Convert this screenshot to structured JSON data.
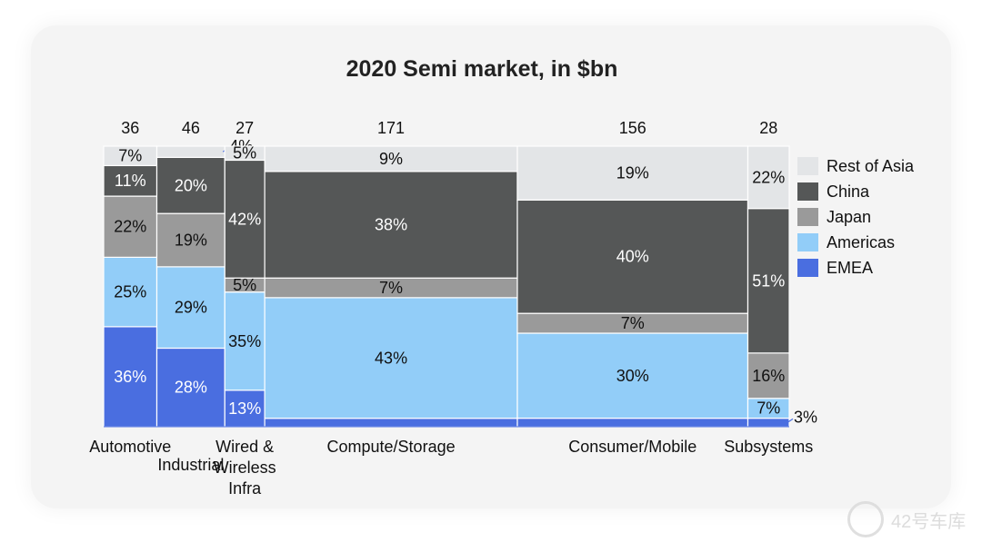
{
  "page": {
    "watermark_text": "42号车库"
  },
  "chart_data": {
    "type": "bar",
    "subtype": "marimekko",
    "title": "2020 Semi market, in $bn",
    "xlabel": "",
    "ylabel": "",
    "ylim": [
      0,
      100
    ],
    "grid": false,
    "legend_position": "right",
    "categories": [
      "Automotive",
      "Industrial",
      "Wired & Wireless Infra",
      "Compute/Storage",
      "Consumer/Mobile",
      "Subsystems"
    ],
    "category_labels": [
      [
        "Automotive"
      ],
      [
        "Industrial"
      ],
      [
        "Wired &",
        "Wireless",
        "Infra"
      ],
      [
        "Compute/Storage"
      ],
      [
        "Consumer/Mobile"
      ],
      [
        "Subsystems"
      ]
    ],
    "totals": [
      36,
      46,
      27,
      171,
      156,
      28
    ],
    "series": [
      {
        "name": "EMEA",
        "color": "#4a6ee0",
        "values": [
          36,
          28,
          13,
          3,
          3,
          3
        ]
      },
      {
        "name": "Americas",
        "color": "#92cdf8",
        "values": [
          25,
          29,
          35,
          43,
          30,
          7
        ]
      },
      {
        "name": "Japan",
        "color": "#9a9a9a",
        "values": [
          22,
          19,
          5,
          7,
          7,
          16
        ]
      },
      {
        "name": "China",
        "color": "#555757",
        "values": [
          11,
          20,
          42,
          38,
          40,
          51
        ]
      },
      {
        "name": "Rest of Asia",
        "color": "#e3e5e7",
        "values": [
          7,
          4,
          5,
          9,
          19,
          22
        ]
      }
    ],
    "value_format": "{v}%"
  }
}
